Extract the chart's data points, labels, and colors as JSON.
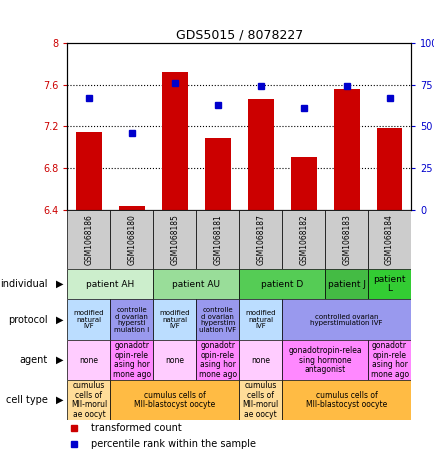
{
  "title": "GDS5015 / 8078227",
  "samples": [
    "GSM1068186",
    "GSM1068180",
    "GSM1068185",
    "GSM1068181",
    "GSM1068187",
    "GSM1068182",
    "GSM1068183",
    "GSM1068184"
  ],
  "transformed_counts": [
    7.15,
    6.44,
    7.72,
    7.09,
    7.46,
    6.91,
    7.56,
    7.18
  ],
  "percentile_ranks": [
    67,
    46,
    76,
    63,
    74,
    61,
    74,
    67
  ],
  "ylim": [
    6.4,
    8.0
  ],
  "ylim_right": [
    0,
    100
  ],
  "yticks_left": [
    6.4,
    6.8,
    7.2,
    7.6,
    8.0
  ],
  "ytick_labels_left": [
    "6.4",
    "6.8",
    "7.2",
    "7.6",
    "8"
  ],
  "yticks_right": [
    0,
    25,
    50,
    75,
    100
  ],
  "ytick_labels_right": [
    "0",
    "25",
    "50",
    "75",
    "100%"
  ],
  "bar_color": "#cc0000",
  "dot_color": "#0000cc",
  "individual_groups": [
    {
      "label": "patient AH",
      "cols": [
        0,
        1
      ],
      "color": "#cceecc"
    },
    {
      "label": "patient AU",
      "cols": [
        2,
        3
      ],
      "color": "#99dd99"
    },
    {
      "label": "patient D",
      "cols": [
        4,
        5
      ],
      "color": "#55cc55"
    },
    {
      "label": "patient J",
      "cols": [
        6
      ],
      "color": "#44bb44"
    },
    {
      "label": "patient\nL",
      "cols": [
        7
      ],
      "color": "#33cc33"
    }
  ],
  "protocol_groups": [
    {
      "label": "modified\nnatural\nIVF",
      "cols": [
        0
      ],
      "color": "#bbddff"
    },
    {
      "label": "controlle\nd ovarian\nhypersti\nmulation I",
      "cols": [
        1
      ],
      "color": "#9999ee"
    },
    {
      "label": "modified\nnatural\nIVF",
      "cols": [
        2
      ],
      "color": "#bbddff"
    },
    {
      "label": "controlle\nd ovarian\nhyperstim\nulation IVF",
      "cols": [
        3
      ],
      "color": "#9999ee"
    },
    {
      "label": "modified\nnatural\nIVF",
      "cols": [
        4
      ],
      "color": "#bbddff"
    },
    {
      "label": "controlled ovarian\nhyperstimulation IVF",
      "cols": [
        5,
        6,
        7
      ],
      "color": "#9999ee"
    }
  ],
  "agent_groups": [
    {
      "label": "none",
      "cols": [
        0
      ],
      "color": "#ffccff"
    },
    {
      "label": "gonadotr\nopin-rele\nasing hor\nmone ago",
      "cols": [
        1
      ],
      "color": "#ff88ff"
    },
    {
      "label": "none",
      "cols": [
        2
      ],
      "color": "#ffccff"
    },
    {
      "label": "gonadotr\nopin-rele\nasing hor\nmone ago",
      "cols": [
        3
      ],
      "color": "#ff88ff"
    },
    {
      "label": "none",
      "cols": [
        4
      ],
      "color": "#ffccff"
    },
    {
      "label": "gonadotropin-relea\nsing hormone\nantagonist",
      "cols": [
        5,
        6
      ],
      "color": "#ff88ff"
    },
    {
      "label": "gonadotr\nopin-rele\nasing hor\nmone ago",
      "cols": [
        7
      ],
      "color": "#ff88ff"
    }
  ],
  "celltype_groups": [
    {
      "label": "cumulus\ncells of\nMII-morul\nae oocyt",
      "cols": [
        0
      ],
      "color": "#ffdd99"
    },
    {
      "label": "cumulus cells of\nMII-blastocyst oocyte",
      "cols": [
        1,
        2,
        3
      ],
      "color": "#ffbb44"
    },
    {
      "label": "cumulus\ncells of\nMII-morul\nae oocyt",
      "cols": [
        4
      ],
      "color": "#ffdd99"
    },
    {
      "label": "cumulus cells of\nMII-blastocyst oocyte",
      "cols": [
        5,
        6,
        7
      ],
      "color": "#ffbb44"
    }
  ],
  "row_labels": [
    "individual",
    "protocol",
    "agent",
    "cell type"
  ],
  "legend_items": [
    {
      "label": "transformed count",
      "color": "#cc0000"
    },
    {
      "label": "percentile rank within the sample",
      "color": "#0000cc"
    }
  ]
}
